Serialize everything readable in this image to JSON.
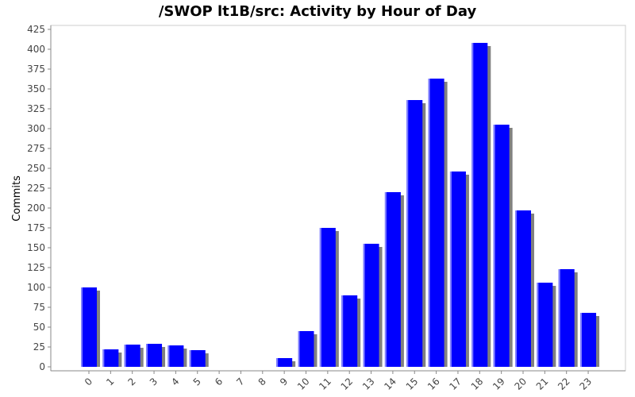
{
  "chart_data": {
    "type": "bar",
    "title": "/SWOP lt1B/src: Activity by Hour of Day",
    "xlabel": "",
    "ylabel": "Commits",
    "ylim": [
      0,
      425
    ],
    "y_ticks": [
      0,
      25,
      50,
      75,
      100,
      125,
      150,
      175,
      200,
      225,
      250,
      275,
      300,
      325,
      350,
      375,
      400,
      425
    ],
    "categories": [
      "0",
      "1",
      "2",
      "3",
      "4",
      "5",
      "6",
      "7",
      "8",
      "9",
      "10",
      "11",
      "12",
      "13",
      "14",
      "15",
      "16",
      "17",
      "18",
      "19",
      "20",
      "21",
      "22",
      "23"
    ],
    "values": [
      100,
      22,
      28,
      29,
      27,
      21,
      0,
      0,
      0,
      11,
      45,
      175,
      90,
      155,
      220,
      336,
      363,
      246,
      408,
      305,
      197,
      106,
      123,
      68
    ],
    "grid": false,
    "legend": "none",
    "colors": {
      "bar": "#0000ff",
      "bar_highlight": "#8080ff",
      "shadow": "#808080",
      "axis": "#888888"
    }
  }
}
